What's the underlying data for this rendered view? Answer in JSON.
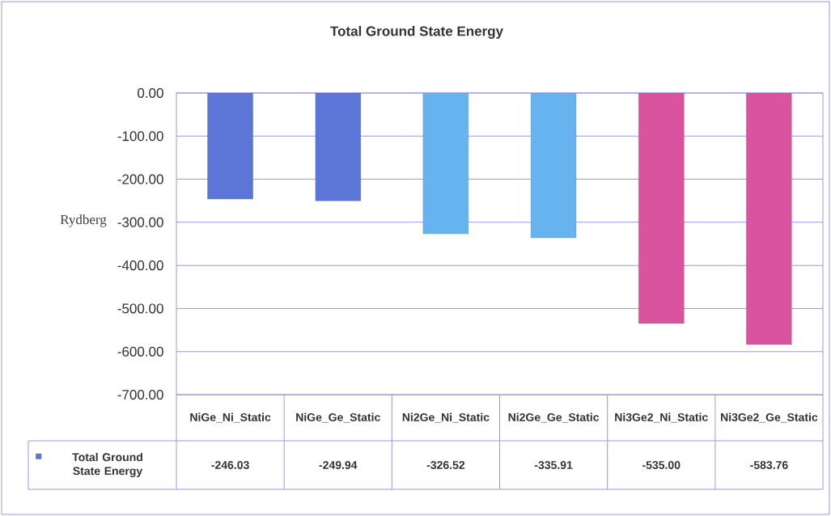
{
  "chart_data": {
    "type": "bar",
    "title": "Total Ground State Energy",
    "ylabel": "Rydberg",
    "categories": [
      "NiGe_Ni_Static",
      "NiGe_Ge_Static",
      "Ni2Ge_Ni_Static",
      "Ni2Ge_Ge_Static",
      "Ni3Ge2_Ni_Static",
      "Ni3Ge2_Ge_Static"
    ],
    "series": [
      {
        "name": "Total Ground State Energy",
        "colors": [
          "#5b76d6",
          "#5b76d6",
          "#66b3f0",
          "#66b3f0",
          "#d9539e",
          "#d9539e"
        ],
        "values": [
          -246.03,
          -249.94,
          -326.52,
          -335.91,
          -535.0,
          -583.76
        ],
        "value_labels": [
          "-246.03",
          "-249.94",
          "-326.52",
          "-335.91",
          "-535.00",
          "-583.76"
        ]
      }
    ],
    "ylim": [
      -700,
      0
    ],
    "yticks": [
      {
        "value": 0,
        "label": "0.00"
      },
      {
        "value": -100,
        "label": "-100.00"
      },
      {
        "value": -200,
        "label": "-200.00"
      },
      {
        "value": -300,
        "label": "-300.00"
      },
      {
        "value": -400,
        "label": "-400.00"
      },
      {
        "value": -500,
        "label": "-500.00"
      },
      {
        "value": -600,
        "label": "-600.00"
      },
      {
        "value": -700,
        "label": "-700.00"
      }
    ],
    "grid": "y",
    "legend": "bottom"
  }
}
